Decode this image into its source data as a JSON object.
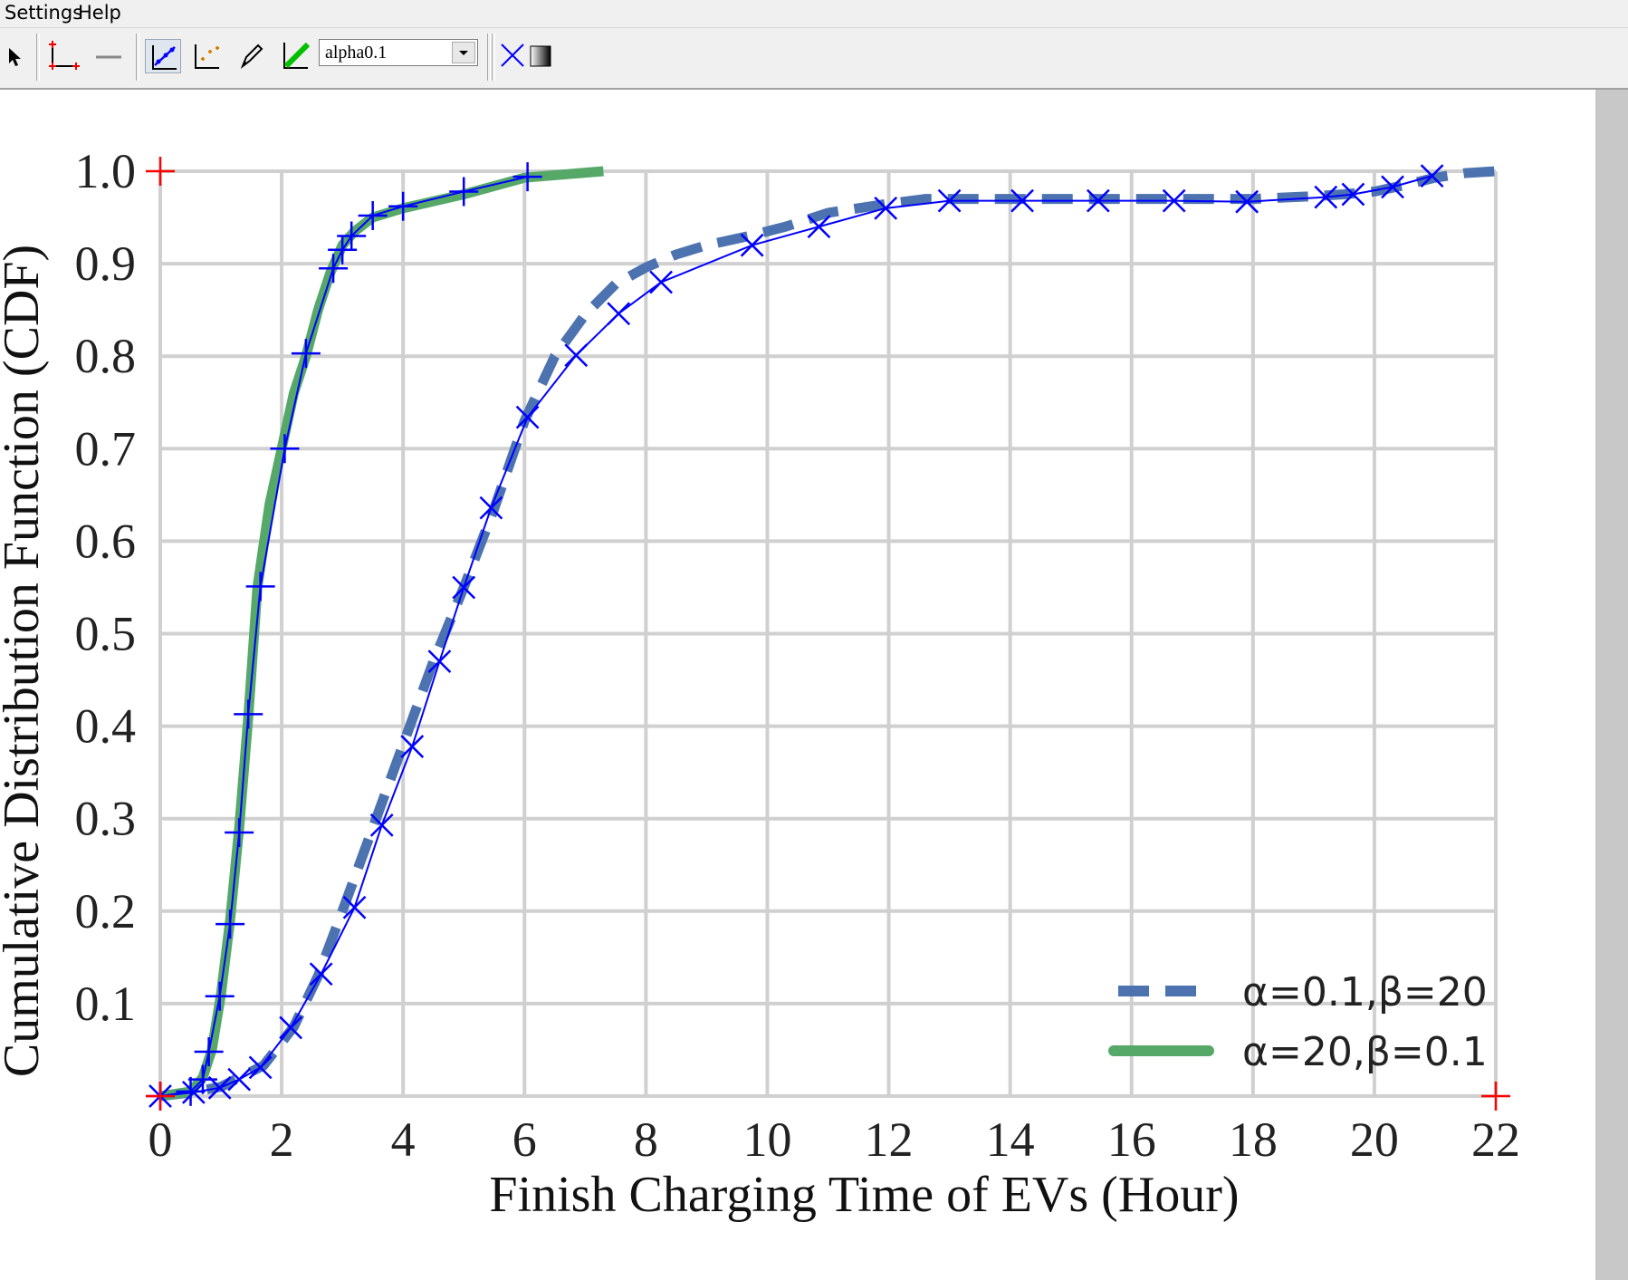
{
  "menu": {
    "settings": "Settings",
    "help": "Help"
  },
  "toolbar": {
    "combo_value": "alpha0.1",
    "icons": [
      "pointer-icon",
      "axes-icon",
      "line-icon",
      "dataset-icon",
      "points-icon",
      "pen-icon",
      "line-fit-icon",
      "delete-point-icon",
      "gradient-icon"
    ]
  },
  "colors": {
    "curve": "#0000ff",
    "marker": "#0000ff",
    "calib": "#ff0000",
    "dashed": "#4c72b0",
    "solid": "#55a868",
    "grid": "#d0d0d0"
  },
  "chart_data": {
    "type": "line",
    "xlabel": "Finish Charging Time of  EVs  (Hour)",
    "ylabel": "Cumulative Distribution Function (CDF)",
    "xlim": [
      0,
      22
    ],
    "ylim": [
      0,
      1.0
    ],
    "x_ticks": [
      "0",
      "2",
      "4",
      "6",
      "8",
      "10",
      "12",
      "14",
      "16",
      "18",
      "20",
      "22"
    ],
    "y_ticks": [
      "0.1",
      "0.2",
      "0.3",
      "0.4",
      "0.5",
      "0.6",
      "0.7",
      "0.8",
      "0.9",
      "1.0"
    ],
    "grid": true,
    "legend_position": "lower-right",
    "series": [
      {
        "name": "α=0.1,β=20",
        "style": "dashed",
        "marker": "x",
        "x": [
          0.0,
          0.5,
          1.0,
          1.3,
          1.7,
          2.2,
          2.6,
          3.0,
          3.5,
          4.0,
          4.5,
          5.0,
          5.5,
          6.0,
          6.5,
          7.0,
          7.5,
          8.0,
          8.5,
          9.0,
          9.7,
          10.3,
          11.0,
          12.0,
          12.6,
          13.2,
          14.0,
          15.0,
          16.0,
          17.0,
          18.0,
          19.0,
          19.5,
          20.0,
          20.5,
          21.0,
          21.5,
          22.0
        ],
        "y": [
          0.0,
          0.004,
          0.01,
          0.02,
          0.033,
          0.075,
          0.13,
          0.2,
          0.29,
          0.38,
          0.47,
          0.55,
          0.635,
          0.73,
          0.8,
          0.845,
          0.878,
          0.896,
          0.91,
          0.92,
          0.93,
          0.94,
          0.955,
          0.965,
          0.97,
          0.97,
          0.97,
          0.97,
          0.97,
          0.97,
          0.97,
          0.973,
          0.975,
          0.978,
          0.985,
          0.993,
          0.998,
          1.0
        ],
        "marker_x": [
          0.0,
          0.55,
          0.98,
          1.3,
          1.65,
          2.15,
          2.65,
          3.2,
          3.65,
          4.15,
          4.6,
          5.0,
          5.45,
          6.05,
          6.85,
          7.55,
          8.25,
          9.75,
          10.85,
          11.95,
          13.0,
          14.2,
          15.45,
          16.7,
          17.9,
          19.2,
          19.65,
          20.3,
          20.95
        ],
        "marker_y": [
          0.0,
          0.004,
          0.009,
          0.018,
          0.031,
          0.074,
          0.132,
          0.204,
          0.293,
          0.378,
          0.47,
          0.55,
          0.636,
          0.734,
          0.801,
          0.846,
          0.88,
          0.92,
          0.94,
          0.96,
          0.968,
          0.968,
          0.968,
          0.968,
          0.967,
          0.972,
          0.975,
          0.983,
          0.995
        ]
      },
      {
        "name": "α=20,β=0.1",
        "style": "solid",
        "marker": "+",
        "x": [
          0.0,
          0.5,
          0.7,
          0.85,
          1.0,
          1.15,
          1.3,
          1.45,
          1.6,
          1.8,
          2.0,
          2.2,
          2.4,
          2.6,
          2.8,
          3.0,
          3.2,
          3.5,
          4.0,
          5.0,
          6.0,
          7.3
        ],
        "y": [
          0.0,
          0.005,
          0.02,
          0.05,
          0.11,
          0.19,
          0.29,
          0.41,
          0.55,
          0.64,
          0.7,
          0.76,
          0.8,
          0.85,
          0.89,
          0.92,
          0.935,
          0.95,
          0.96,
          0.975,
          0.993,
          1.0
        ],
        "marker_x": [
          0.0,
          0.5,
          0.7,
          0.8,
          0.98,
          1.15,
          1.3,
          1.45,
          1.65,
          2.05,
          2.4,
          2.85,
          3.0,
          3.15,
          3.5,
          4.0,
          5.0,
          6.05
        ],
        "marker_y": [
          0.0,
          0.005,
          0.018,
          0.048,
          0.108,
          0.186,
          0.285,
          0.413,
          0.551,
          0.7,
          0.803,
          0.895,
          0.915,
          0.93,
          0.952,
          0.962,
          0.978,
          0.994
        ]
      }
    ]
  }
}
